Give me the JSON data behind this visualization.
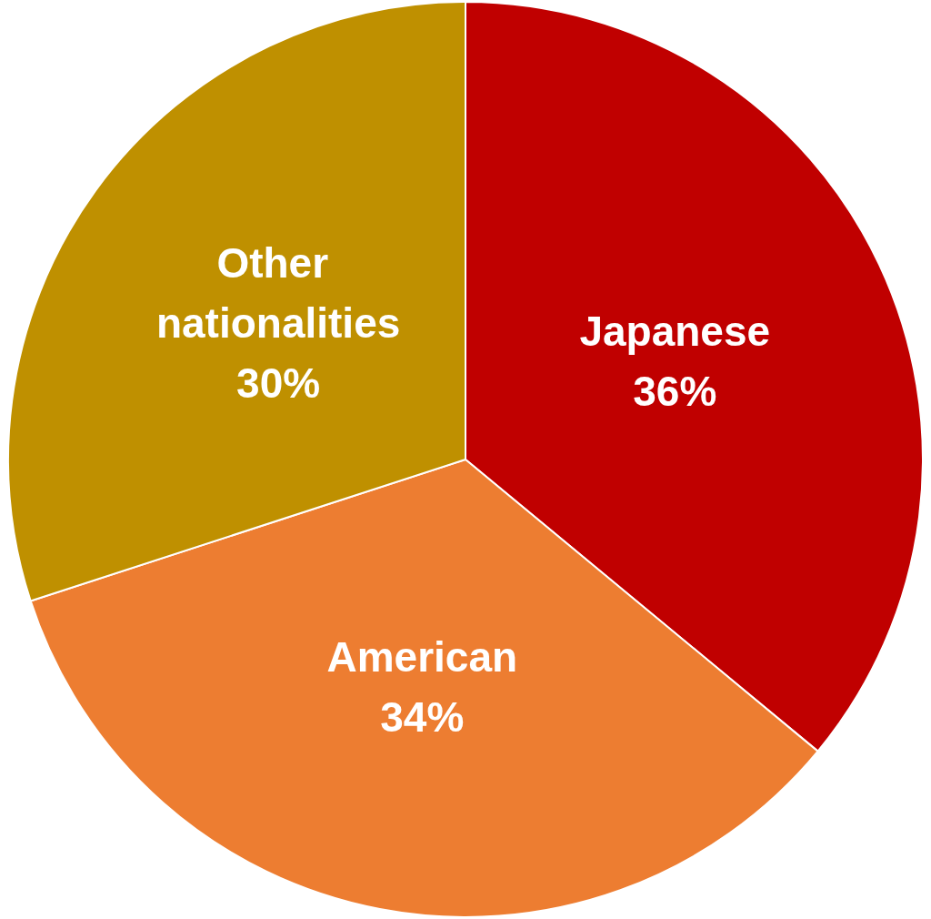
{
  "chart_data": {
    "type": "pie",
    "categories": [
      "Japanese",
      "American",
      "Other nationalities"
    ],
    "values": [
      36,
      34,
      30
    ],
    "colors": [
      "#c00000",
      "#ed7d31",
      "#bf9000"
    ],
    "value_labels": [
      "36%",
      "34%",
      "30%"
    ],
    "legend": false
  }
}
